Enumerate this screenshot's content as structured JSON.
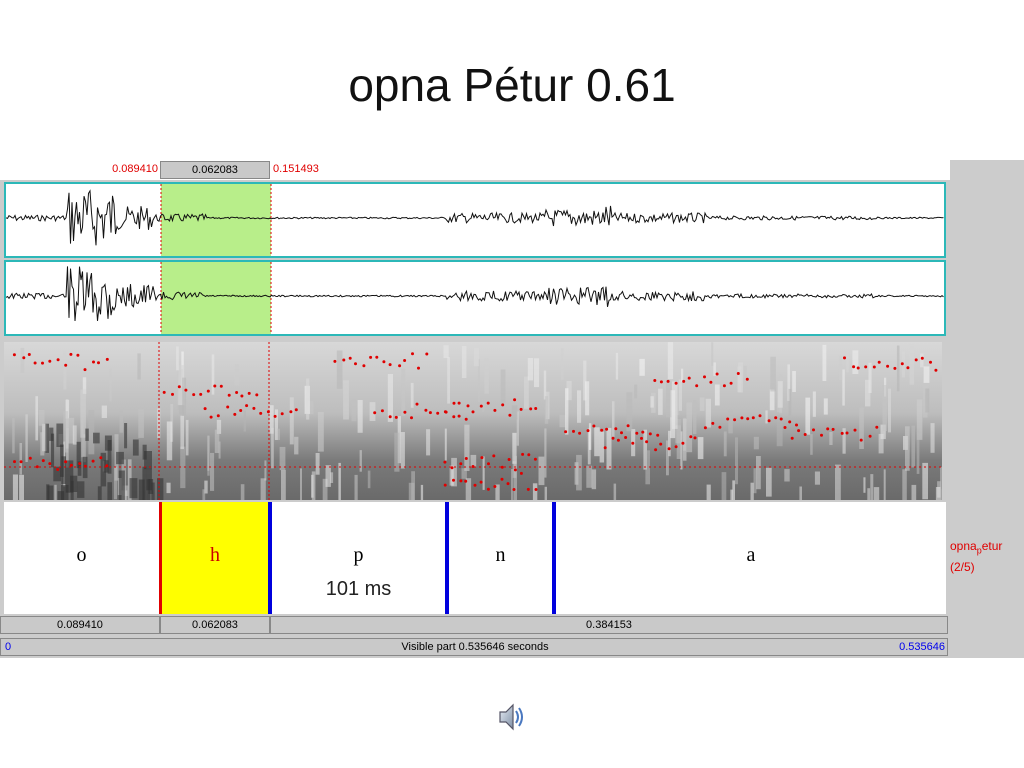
{
  "slide": {
    "title": "opna Pétur 0.61"
  },
  "topbar": {
    "left_time": "0.089410",
    "selection_duration": "0.062083",
    "right_time": "0.151493"
  },
  "segments": [
    {
      "label": "o"
    },
    {
      "label": "h",
      "duration_note": ""
    },
    {
      "label": "p",
      "duration_note": "101 ms"
    },
    {
      "label": "n"
    },
    {
      "label": "a"
    }
  ],
  "tier": {
    "name_line1": "opna",
    "name_sub": "p",
    "name_line1_rest": "etur",
    "name_line2": "(2/5)"
  },
  "duration_bar": {
    "left": "0.089410",
    "selection": "0.062083",
    "right": "0.384153"
  },
  "visible_bar": {
    "start": "0",
    "label": "Visible part 0.535646 seconds",
    "end": "0.535646"
  },
  "colors": {
    "selection_wave": "#b8ee8a",
    "selected_segment": "#ffff00",
    "boundary": "#0000dd",
    "cursor": "#e00000",
    "frame": "#2cb8b8"
  },
  "icons": {
    "audio": "speaker-icon"
  }
}
